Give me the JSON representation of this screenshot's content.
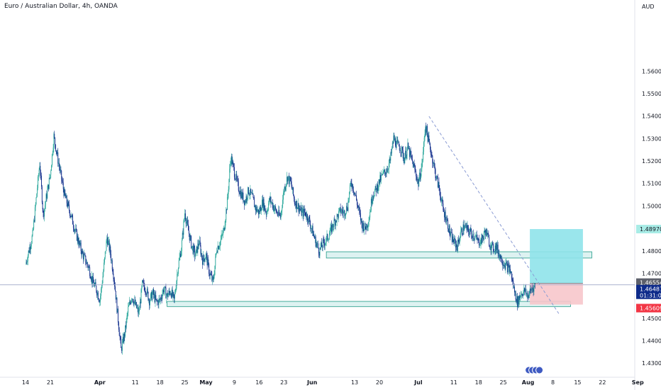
{
  "header": {
    "title": "Euro / Australian Dollar, 4h, OANDA",
    "currency": "AUD"
  },
  "price_tags": {
    "target": "1.48970",
    "upper": "1.46554",
    "current": "1.46487",
    "countdown": "01:31:08",
    "stop": "1.45609"
  },
  "colors": {
    "candle_up": "#26a69a",
    "candle_down": "#0d2a8a",
    "zone_fill": "#d7f0ee",
    "zone_stroke": "#1e9a87",
    "profit": "#8fe3ea",
    "loss": "#f7c6cb",
    "current_tag": "#0d2a8a",
    "stop_tag": "#f23645",
    "target_tag": "#a8ece6",
    "upper_tag": "#5d606b"
  },
  "chart_data": {
    "type": "candlestick",
    "title": "Euro / Australian Dollar, 4h, OANDA",
    "ylabel": "AUD",
    "ylim": [
      1.425,
      1.586
    ],
    "y_ticks": [
      1.43,
      1.44,
      1.45,
      1.46,
      1.47,
      1.48,
      1.49,
      1.5,
      1.51,
      1.52,
      1.53,
      1.54,
      1.55,
      1.56
    ],
    "y_tick_labels": [
      "1.43000",
      "1.44000",
      "1.45000",
      "1.46000",
      "1.47000",
      "1.48000",
      "1.49000",
      "1.50000",
      "1.51000",
      "1.52000",
      "1.53000",
      "1.54000",
      "1.55000",
      "1.56000"
    ],
    "x_ticks": [
      {
        "label": "14",
        "index": 0
      },
      {
        "label": "21",
        "index": 7
      },
      {
        "label": "Apr",
        "index": 21
      },
      {
        "label": "11",
        "index": 31
      },
      {
        "label": "18",
        "index": 38
      },
      {
        "label": "25",
        "index": 45
      },
      {
        "label": "May",
        "index": 51
      },
      {
        "label": "9",
        "index": 59
      },
      {
        "label": "16",
        "index": 66
      },
      {
        "label": "23",
        "index": 73
      },
      {
        "label": "Jun",
        "index": 81
      },
      {
        "label": "13",
        "index": 93
      },
      {
        "label": "20",
        "index": 100
      },
      {
        "label": "Jul",
        "index": 111
      },
      {
        "label": "11",
        "index": 121
      },
      {
        "label": "18",
        "index": 128
      },
      {
        "label": "25",
        "index": 135
      },
      {
        "label": "Aug",
        "index": 142
      },
      {
        "label": "8",
        "index": 149
      },
      {
        "label": "15",
        "index": 156
      },
      {
        "label": "22",
        "index": 163
      },
      {
        "label": "Sep",
        "index": 173
      }
    ],
    "x_axis_days": 175,
    "close_path": [
      [
        0,
        1.474
      ],
      [
        2,
        1.487
      ],
      [
        4,
        1.519
      ],
      [
        5,
        1.496
      ],
      [
        7,
        1.514
      ],
      [
        8,
        1.531
      ],
      [
        9,
        1.522
      ],
      [
        11,
        1.505
      ],
      [
        13,
        1.495
      ],
      [
        14,
        1.489
      ],
      [
        16,
        1.479
      ],
      [
        18,
        1.472
      ],
      [
        19,
        1.466
      ],
      [
        20,
        1.463
      ],
      [
        21,
        1.458
      ],
      [
        22,
        1.471
      ],
      [
        23,
        1.486
      ],
      [
        24,
        1.479
      ],
      [
        25,
        1.468
      ],
      [
        26,
        1.452
      ],
      [
        27,
        1.436
      ],
      [
        28,
        1.443
      ],
      [
        29,
        1.454
      ],
      [
        30,
        1.46
      ],
      [
        31,
        1.456
      ],
      [
        32,
        1.452
      ],
      [
        33,
        1.465
      ],
      [
        34,
        1.463
      ],
      [
        35,
        1.458
      ],
      [
        36,
        1.461
      ],
      [
        37,
        1.457
      ],
      [
        38,
        1.458
      ],
      [
        39,
        1.463
      ],
      [
        40,
        1.46
      ],
      [
        41,
        1.462
      ],
      [
        42,
        1.458
      ],
      [
        43,
        1.472
      ],
      [
        44,
        1.481
      ],
      [
        45,
        1.497
      ],
      [
        46,
        1.489
      ],
      [
        47,
        1.482
      ],
      [
        48,
        1.478
      ],
      [
        49,
        1.484
      ],
      [
        50,
        1.476
      ],
      [
        51,
        1.478
      ],
      [
        52,
        1.47
      ],
      [
        53,
        1.466
      ],
      [
        54,
        1.481
      ],
      [
        55,
        1.484
      ],
      [
        56,
        1.489
      ],
      [
        57,
        1.502
      ],
      [
        58,
        1.522
      ],
      [
        59,
        1.515
      ],
      [
        60,
        1.509
      ],
      [
        61,
        1.505
      ],
      [
        62,
        1.502
      ],
      [
        63,
        1.507
      ],
      [
        64,
        1.504
      ],
      [
        65,
        1.499
      ],
      [
        66,
        1.497
      ],
      [
        67,
        1.502
      ],
      [
        68,
        1.497
      ],
      [
        69,
        1.503
      ],
      [
        70,
        1.5
      ],
      [
        71,
        1.497
      ],
      [
        72,
        1.495
      ],
      [
        73,
        1.507
      ],
      [
        74,
        1.513
      ],
      [
        75,
        1.51
      ],
      [
        76,
        1.502
      ],
      [
        77,
        1.5
      ],
      [
        78,
        1.497
      ],
      [
        79,
        1.497
      ],
      [
        80,
        1.494
      ],
      [
        81,
        1.489
      ],
      [
        82,
        1.484
      ],
      [
        83,
        1.48
      ],
      [
        84,
        1.483
      ],
      [
        85,
        1.485
      ],
      [
        86,
        1.488
      ],
      [
        87,
        1.492
      ],
      [
        88,
        1.495
      ],
      [
        89,
        1.498
      ],
      [
        90,
        1.497
      ],
      [
        91,
        1.5
      ],
      [
        92,
        1.511
      ],
      [
        93,
        1.506
      ],
      [
        94,
        1.499
      ],
      [
        95,
        1.492
      ],
      [
        96,
        1.49
      ],
      [
        97,
        1.494
      ],
      [
        98,
        1.505
      ],
      [
        99,
        1.507
      ],
      [
        100,
        1.511
      ],
      [
        101,
        1.514
      ],
      [
        102,
        1.516
      ],
      [
        103,
        1.52
      ],
      [
        104,
        1.53
      ],
      [
        105,
        1.527
      ],
      [
        106,
        1.526
      ],
      [
        107,
        1.521
      ],
      [
        108,
        1.526
      ],
      [
        109,
        1.521
      ],
      [
        110,
        1.516
      ],
      [
        111,
        1.51
      ],
      [
        112,
        1.518
      ],
      [
        113,
        1.536
      ],
      [
        114,
        1.528
      ],
      [
        115,
        1.521
      ],
      [
        116,
        1.513
      ],
      [
        117,
        1.507
      ],
      [
        118,
        1.498
      ],
      [
        119,
        1.494
      ],
      [
        120,
        1.487
      ],
      [
        121,
        1.484
      ],
      [
        122,
        1.482
      ],
      [
        123,
        1.488
      ],
      [
        124,
        1.491
      ],
      [
        125,
        1.489
      ],
      [
        126,
        1.488
      ],
      [
        127,
        1.486
      ],
      [
        128,
        1.484
      ],
      [
        129,
        1.485
      ],
      [
        130,
        1.489
      ],
      [
        131,
        1.484
      ],
      [
        132,
        1.481
      ],
      [
        133,
        1.482
      ],
      [
        134,
        1.478
      ],
      [
        135,
        1.475
      ],
      [
        136,
        1.473
      ],
      [
        137,
        1.471
      ],
      [
        138,
        1.463
      ],
      [
        139,
        1.457
      ],
      [
        140,
        1.461
      ],
      [
        141,
        1.462
      ],
      [
        142,
        1.46
      ],
      [
        143,
        1.463
      ],
      [
        144,
        1.4649
      ]
    ],
    "support_zones": [
      {
        "y_top": 1.4796,
        "y_bottom": 1.4768,
        "x_start": 85,
        "x_end": 160
      },
      {
        "y_top": 1.4575,
        "y_bottom": 1.4552,
        "x_start": 40,
        "x_end": 154
      }
    ],
    "trendline": {
      "from": [
        114,
        1.5399
      ],
      "to": [
        151,
        1.4513
      ],
      "style": "dashed"
    },
    "position": {
      "type": "long",
      "x_start": 142.5,
      "x_end": 157.5,
      "target": 1.4897,
      "entry": 1.46554,
      "stop": 1.45609
    },
    "current_price": 1.46487
  }
}
